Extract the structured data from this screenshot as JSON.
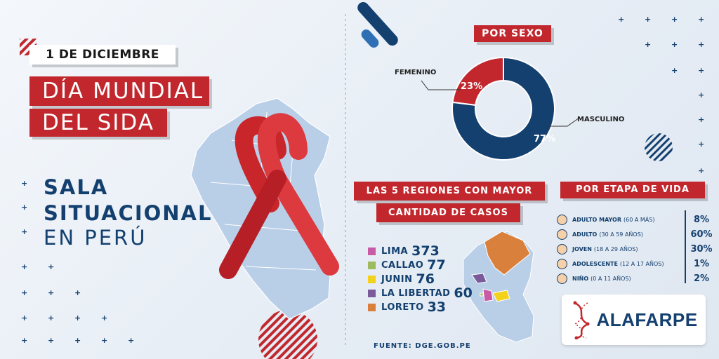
{
  "header": {
    "date": "1 DE DICIEMBRE",
    "title_line1": "DÍA MUNDIAL",
    "title_line2": "DEL SIDA",
    "subtitle_line1": "SALA",
    "subtitle_line2": "SITUACIONAL",
    "subtitle_line3": "EN PERÚ"
  },
  "sex_section": {
    "title": "POR SEXO",
    "female_label": "FEMENINO",
    "male_label": "MASCULINO",
    "female_pct": "23%",
    "male_pct": "77%"
  },
  "regions_section": {
    "title_line1": "LAS 5 REGIONES CON MAYOR",
    "title_line2": "CANTIDAD DE CASOS",
    "items": [
      {
        "name": "LIMA",
        "value": "373",
        "color": "#c95ba6"
      },
      {
        "name": "CALLAO",
        "value": "77",
        "color": "#9dba5f"
      },
      {
        "name": "JUNIN",
        "value": "76",
        "color": "#f2d21b"
      },
      {
        "name": "LA LIBERTAD",
        "value": "60",
        "color": "#7a5a9a"
      },
      {
        "name": "LORETO",
        "value": "33",
        "color": "#d9813c"
      }
    ],
    "source": "FUENTE: DGE.GOB.PE"
  },
  "age_section": {
    "title": "POR ETAPA DE VIDA",
    "items": [
      {
        "label": "ADULTO MAYOR",
        "range": "(60 A MÁS)",
        "value": "8%"
      },
      {
        "label": "ADULTO",
        "range": "(30 A 59 AÑOS)",
        "value": "60%"
      },
      {
        "label": "JOVEN",
        "range": "(18 A 29 AÑOS)",
        "value": "30%"
      },
      {
        "label": "ADOLESCENTE",
        "range": "(12 A 17 AÑOS)",
        "value": "1%"
      },
      {
        "label": "NIÑO",
        "range": "(0 A 11 AÑOS)",
        "value": "2%"
      }
    ]
  },
  "brand": {
    "logo_text": "ALAFARPE"
  },
  "colors": {
    "red": "#c1272d",
    "navy": "#14406f",
    "map": "#b9cfe8"
  },
  "chart_data": {
    "type": "pie",
    "categories": [
      "FEMENINO",
      "MASCULINO"
    ],
    "values": [
      23,
      77
    ]
  }
}
